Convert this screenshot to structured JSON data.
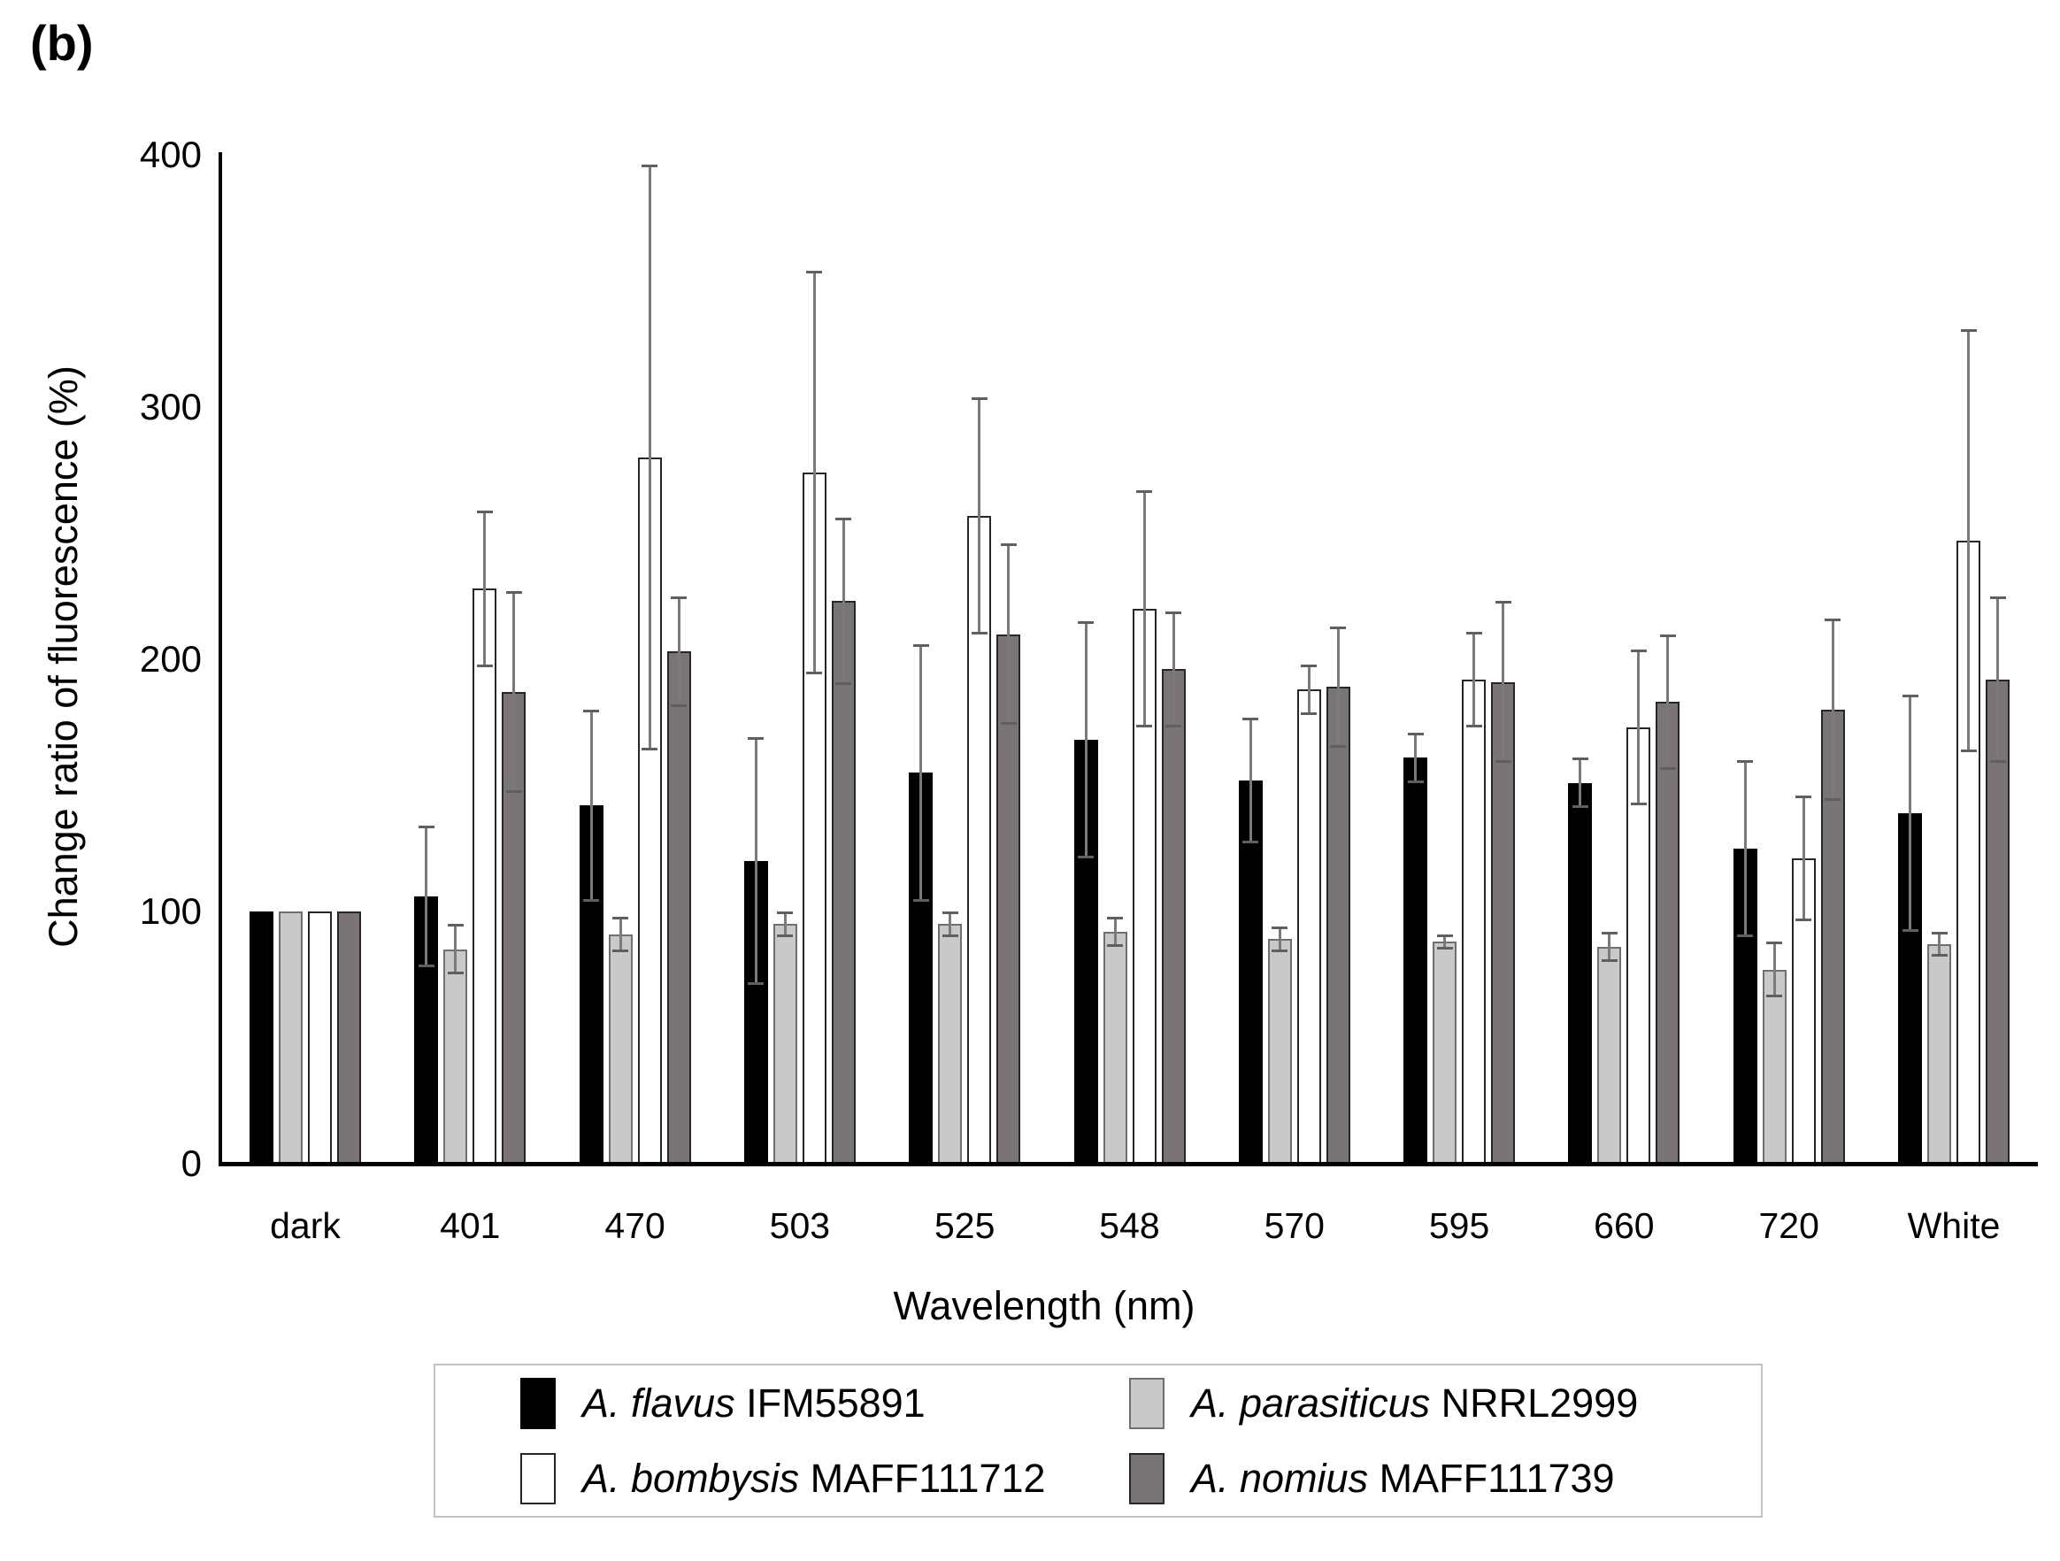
{
  "figure_label": "(b)",
  "axes": {
    "y_title": "Change ratio of fluorescence (%)",
    "x_title": "Wavelength (nm)",
    "y_ticks": [
      "400",
      "300",
      "200",
      "100",
      "0"
    ]
  },
  "chart_data": {
    "type": "bar",
    "title": "",
    "xlabel": "Wavelength (nm)",
    "ylabel": "Change ratio of fluorescence (%)",
    "ylim": [
      0,
      400
    ],
    "grid": false,
    "legend_position": "bottom",
    "error_bars": true,
    "categories": [
      "dark",
      "401",
      "470",
      "503",
      "525",
      "548",
      "570",
      "595",
      "660",
      "720",
      "White"
    ],
    "series": [
      {
        "name_species": "A. flavus",
        "name_strain": "IFM55891",
        "fill": "#000000",
        "border": "#000000",
        "values": [
          100,
          106,
          142,
          120,
          155,
          168,
          152,
          161,
          151,
          125,
          139
        ],
        "errors": [
          0,
          28,
          38,
          49,
          51,
          47,
          25,
          10,
          10,
          35,
          47
        ]
      },
      {
        "name_species": "A. parasiticus",
        "name_strain": "NRRL2999",
        "fill": "#c9c9c9",
        "border": "#6f6f6f",
        "values": [
          100,
          85,
          91,
          95,
          95,
          92,
          89,
          88,
          86,
          77,
          87
        ],
        "errors": [
          0,
          10,
          7,
          5,
          5,
          6,
          5,
          3,
          6,
          11,
          5
        ]
      },
      {
        "name_species": "A. bombysis",
        "name_strain": "MAFF111712",
        "fill": "#ffffff",
        "border": "#262626",
        "values": [
          100,
          228,
          280,
          274,
          257,
          220,
          188,
          192,
          173,
          121,
          247
        ],
        "errors": [
          0,
          31,
          116,
          80,
          47,
          47,
          10,
          19,
          31,
          25,
          84
        ]
      },
      {
        "name_species": "A. nomius",
        "name_strain": "MAFF111739",
        "fill": "#7b7477",
        "border": "#262626",
        "values": [
          100,
          187,
          203,
          223,
          210,
          196,
          189,
          191,
          183,
          180,
          192
        ],
        "errors": [
          0,
          40,
          22,
          33,
          36,
          23,
          24,
          32,
          27,
          36,
          33
        ]
      }
    ]
  },
  "colors": {
    "axis": "#000000",
    "error_bar": "#7a7a7a",
    "legend_border": "#c2c2c2"
  }
}
